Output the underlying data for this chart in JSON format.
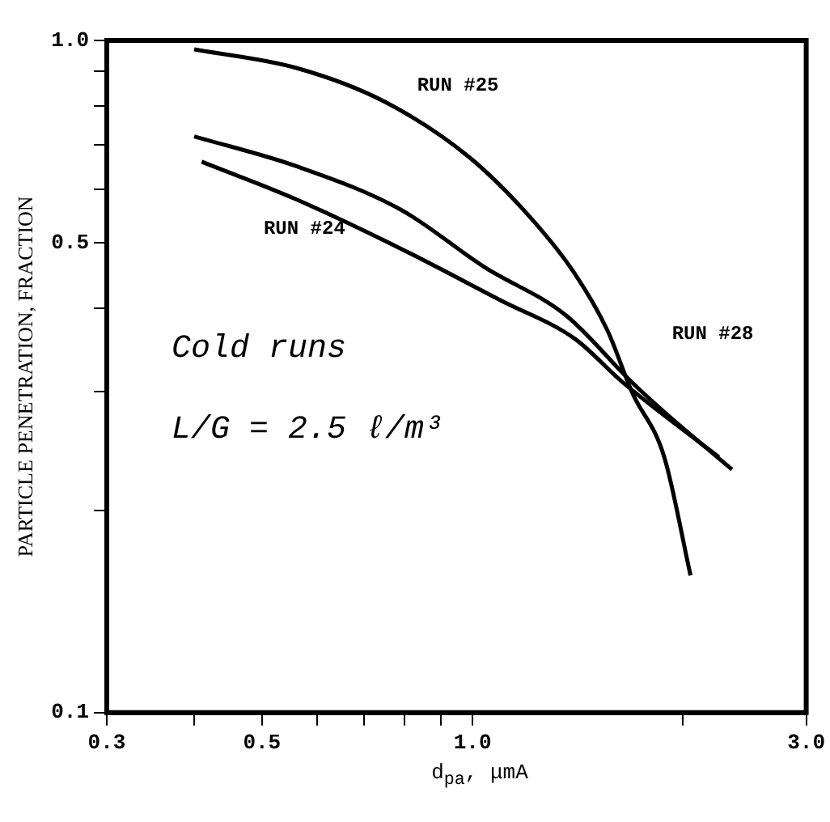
{
  "chart_data": {
    "type": "line",
    "xlabel": "d$_{pa}$, μmA",
    "ylabel": "PARTICLE PENETRATION, FRACTION",
    "log": "xy",
    "grid": false,
    "legend": false,
    "marker": "none",
    "line_style": "solid",
    "xlim": [
      0.3,
      3.0
    ],
    "xticks": [
      0.3,
      {
        "value": 0.4,
        "label": null
      },
      0.5,
      {
        "value": 0.6,
        "label": null
      },
      {
        "value": 0.7,
        "label": null
      },
      {
        "value": 0.8,
        "label": null
      },
      {
        "value": 0.9,
        "label": null
      },
      {
        "value": 1.0,
        "label": "1.0"
      },
      {
        "value": 2.0,
        "label": null
      },
      {
        "value": 3.0,
        "label": "3.0"
      }
    ],
    "ylim": [
      0.1,
      1.0
    ],
    "yticks": [
      0.1,
      {
        "value": 0.2,
        "label": null
      },
      {
        "value": 0.3,
        "label": null
      },
      {
        "value": 0.4,
        "label": null
      },
      0.5,
      {
        "value": 0.6,
        "label": null
      },
      {
        "value": 0.7,
        "label": null
      },
      {
        "value": 0.8,
        "label": null
      },
      {
        "value": 0.9,
        "label": null
      },
      {
        "value": 1.0,
        "label": "1.0"
      }
    ],
    "series": [
      {
        "name": "RUN #25",
        "color": "#000000",
        "x": [
          0.4,
          0.56,
          0.75,
          0.99,
          1.22,
          1.4,
          1.56,
          1.69,
          1.88,
          2.05
        ],
        "values": [
          0.97,
          0.91,
          0.81,
          0.67,
          0.54,
          0.45,
          0.37,
          0.3,
          0.24,
          0.16
        ]
      },
      {
        "name": "RUN #28",
        "color": "#000000",
        "x": [
          0.4,
          0.56,
          0.79,
          1.04,
          1.36,
          1.69,
          1.88,
          2.35
        ],
        "values": [
          0.72,
          0.65,
          0.56,
          0.46,
          0.39,
          0.31,
          0.28,
          0.23
        ]
      },
      {
        "name": "RUN #24",
        "color": "#000000",
        "x": [
          0.41,
          0.56,
          0.79,
          1.1,
          1.4,
          1.64,
          2.25
        ],
        "values": [
          0.66,
          0.58,
          0.49,
          0.41,
          0.36,
          0.31,
          0.24
        ]
      }
    ],
    "annotations": [
      "Cold runs",
      "L/G = 2.5 ℓ/m³"
    ]
  }
}
